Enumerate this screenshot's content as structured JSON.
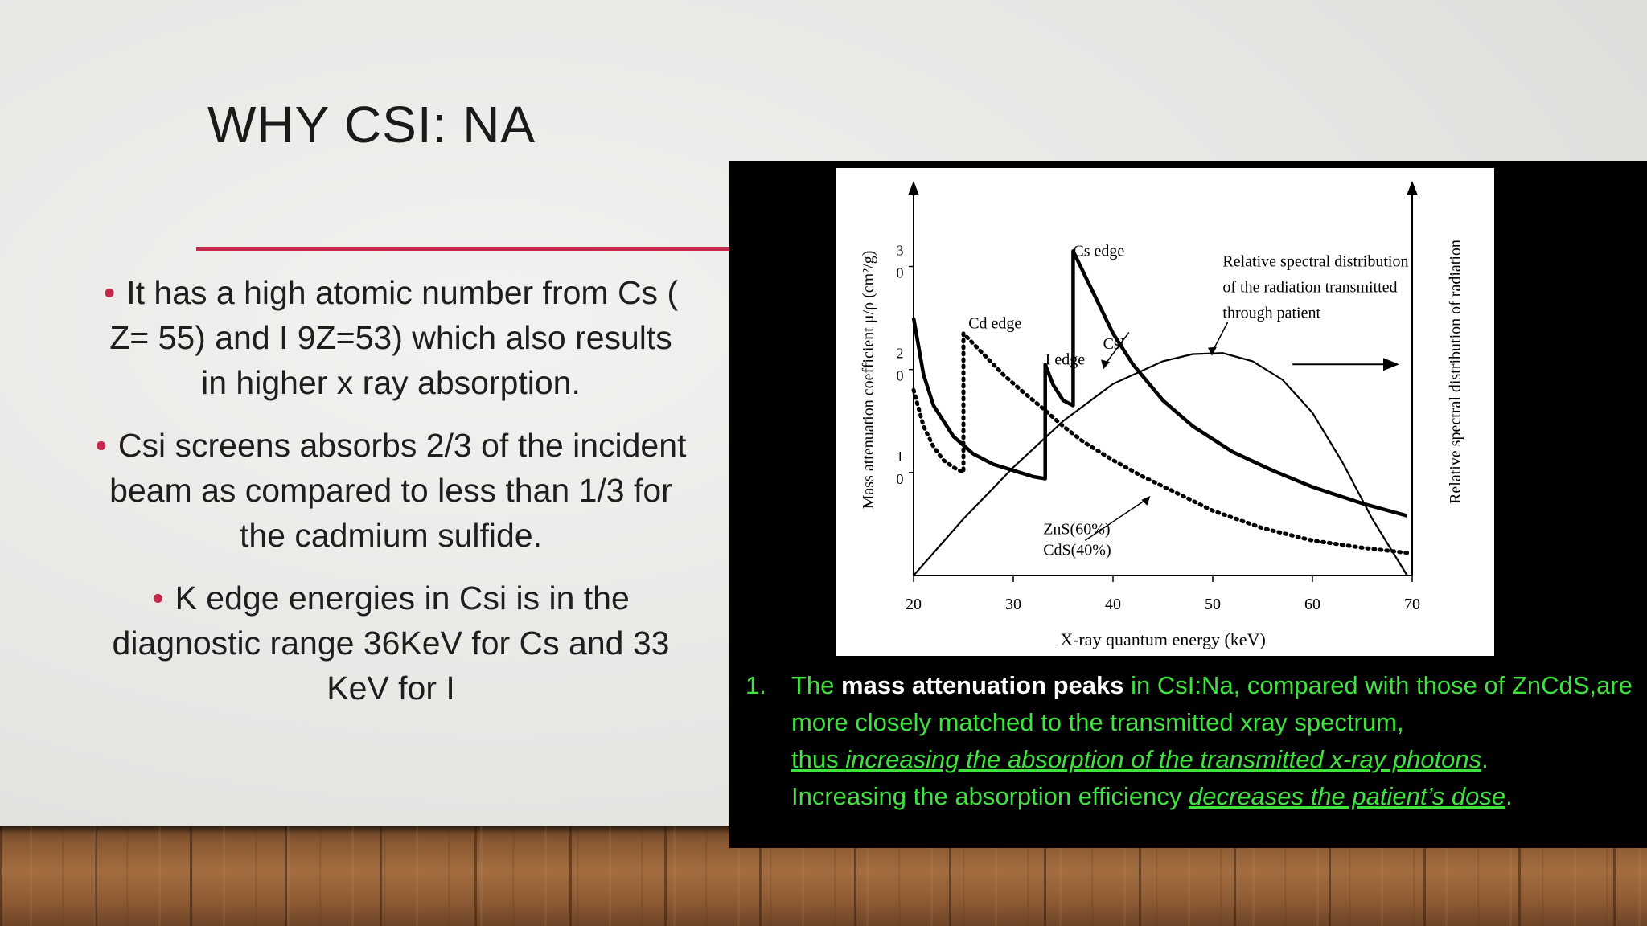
{
  "slide": {
    "title": "WHY CSI: NA",
    "bullets": [
      "It has a high atomic number from Cs ( Z= 55) and I 9Z=53) which also results in higher x ray absorption.",
      "Csi screens absorbs 2/3 of the incident beam as compared to less than 1/3 for the cadmium sulfide.",
      "K edge energies in Csi is in the diagnostic range 36KeV for Cs and 33 KeV for I"
    ],
    "colors": {
      "accent": "#c5284a",
      "caption_text": "#3fe23f",
      "caption_emphasis": "#ffffff",
      "panel": "#000000"
    }
  },
  "chart_data": {
    "type": "line",
    "xlabel": "X-ray quantum energy (keV)",
    "ylabel": "Mass attenuation coefficient μ/ρ (cm²/g)",
    "y2label": "Relative spectral distribution of radiation",
    "xlim": [
      20,
      70
    ],
    "ylim": [
      0,
      38
    ],
    "xticks": [
      "20",
      "30",
      "40",
      "50",
      "60",
      "70"
    ],
    "yticks": [
      {
        "value": 10,
        "label": "1 0"
      },
      {
        "value": 20,
        "label": "2 0"
      },
      {
        "value": 30,
        "label": "3 0"
      }
    ],
    "annotations": [
      {
        "text": "Cs edge",
        "x": 36,
        "y": 31
      },
      {
        "text": "Cd edge",
        "x": 25.5,
        "y": 24
      },
      {
        "text": "I edge",
        "x": 33.2,
        "y": 20.5
      },
      {
        "text": "CsI",
        "x": 39,
        "y": 22
      },
      {
        "text": "Relative spectral distribution",
        "x": 51,
        "y": 30
      },
      {
        "text": "of the radiation transmitted",
        "x": 51,
        "y": 27.5
      },
      {
        "text": "through patient",
        "x": 51,
        "y": 25
      },
      {
        "text": "ZnS(60%)",
        "x": 33,
        "y": 4
      },
      {
        "text": "CdS(40%)",
        "x": 33,
        "y": 2
      }
    ],
    "series": [
      {
        "name": "CsI",
        "style": "solid-thick",
        "x": [
          20,
          21,
          22,
          24,
          26,
          28,
          30,
          32,
          33.2,
          33.2,
          34,
          35,
          36,
          36,
          38,
          40,
          42,
          45,
          48,
          52,
          56,
          60,
          65,
          69.5
        ],
        "y": [
          25,
          19.5,
          16.5,
          13.5,
          11.8,
          10.8,
          10.2,
          9.6,
          9.4,
          20.5,
          18.5,
          17,
          16.5,
          31.5,
          27.5,
          23.5,
          20.5,
          17,
          14.5,
          12,
          10.2,
          8.6,
          7.0,
          5.8
        ]
      },
      {
        "name": "ZnS(60%) CdS(40%)",
        "style": "dotted",
        "x": [
          20,
          21,
          22,
          23,
          24,
          25,
          25,
          27,
          29,
          31,
          33,
          35,
          37,
          40,
          43,
          46,
          50,
          55,
          60,
          65,
          69.5
        ],
        "y": [
          18,
          14.5,
          12.5,
          11.2,
          10.5,
          10,
          23.5,
          21.5,
          19.5,
          17.8,
          16.2,
          14.5,
          13,
          11.2,
          9.6,
          8.2,
          6.3,
          4.6,
          3.4,
          2.7,
          2.2
        ]
      },
      {
        "name": "Relative spectral distribution of the radiation transmitted through patient",
        "style": "solid-thin",
        "x": [
          20,
          25,
          30,
          35,
          40,
          45,
          48,
          51,
          54,
          57,
          60,
          63,
          66,
          69.5
        ],
        "y": [
          0,
          5.5,
          10.5,
          15,
          18.6,
          20.8,
          21.5,
          21.6,
          20.8,
          19,
          15.8,
          11,
          5.5,
          0
        ]
      }
    ]
  },
  "caption": {
    "number": "1.",
    "p1": "The ",
    "bold": "mass attenuation peaks",
    "p2": " in CsI:Na, compared with those of ZnCdS,are more closely matched to the transmitted xray spectrum,",
    "u1": "thus ",
    "u1i": "increasing the absorption of the transmitted x-ray photons",
    "p3": ".",
    "p4": "Increasing the absorption efficiency ",
    "u2i": "decreases the patient’s dose",
    "p5": "."
  }
}
